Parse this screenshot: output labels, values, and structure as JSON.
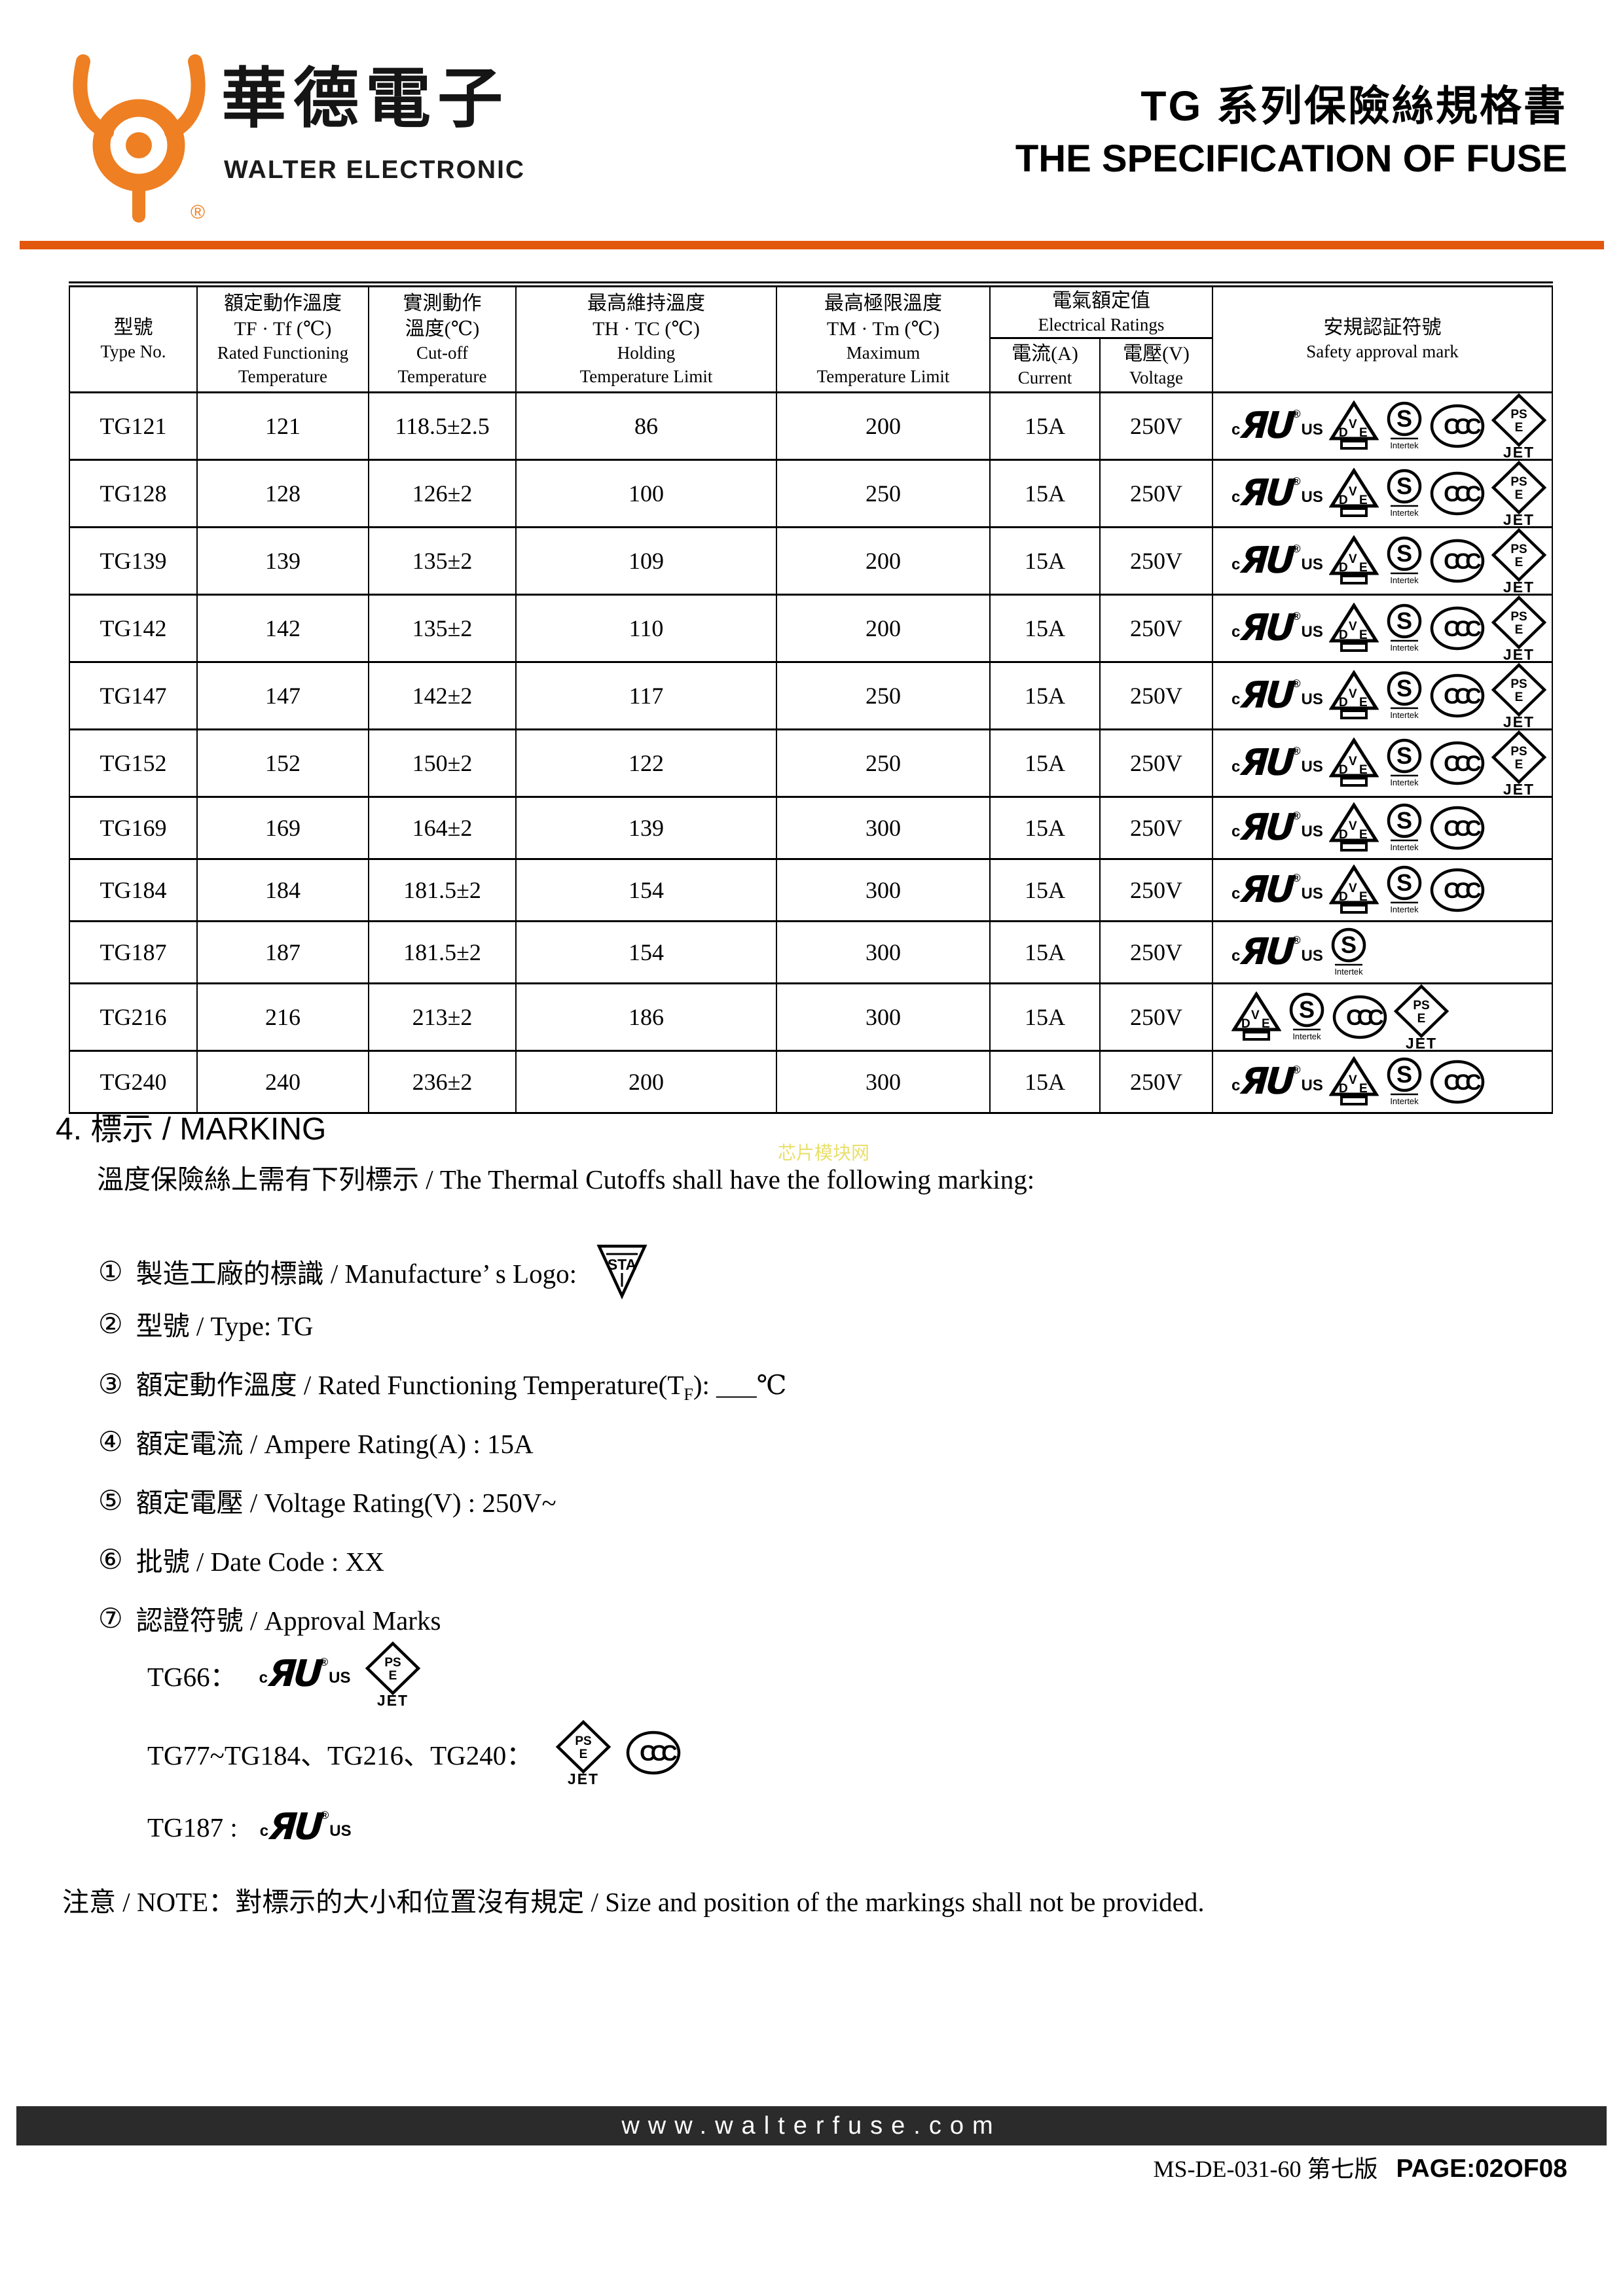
{
  "brand": {
    "name_cn": "華德電子",
    "name_en": "WALTER ELECTRONIC",
    "registered": "®"
  },
  "title": {
    "line1": "TG 系列保險絲規格書",
    "line2": "THE SPECIFICATION OF FUSE"
  },
  "colors": {
    "accent_orange": "#E2570E",
    "logo_orange": "#EE7F22",
    "footer_bar": "#2B2B2B",
    "watermark_yellow": "#E6DA52"
  },
  "table": {
    "col_headers": {
      "type_cn": "型號",
      "type_en": "Type No.",
      "rated_cn": "額定動作溫度",
      "rated_sym": "TF · Tf (℃)",
      "rated_en1": "Rated Functioning",
      "rated_en2": "Temperature",
      "cutoff_cn1": "實測動作",
      "cutoff_cn2": "溫度(℃)",
      "cutoff_en1": "Cut-off",
      "cutoff_en2": "Temperature",
      "holding_cn": "最高維持溫度",
      "holding_sym": "TH · TC (℃)",
      "holding_en1": "Holding",
      "holding_en2": "Temperature Limit",
      "max_cn": "最高極限溫度",
      "max_sym": "TM · Tm (℃)",
      "max_en1": "Maximum",
      "max_en2": "Temperature Limit",
      "elec_cn": "電氣額定值",
      "elec_en": "Electrical Ratings",
      "current_cn": "電流(A)",
      "current_en": "Current",
      "voltage_cn": "電壓(V)",
      "voltage_en": "Voltage",
      "safety_cn": "安規認証符號",
      "safety_en": "Safety approval mark"
    },
    "rows": [
      {
        "type": "TG121",
        "rated": "121",
        "cutoff": "118.5±2.5",
        "holding": "86",
        "max": "200",
        "current": "15A",
        "voltage": "250V",
        "marks": [
          "cULus",
          "VDE",
          "S",
          "CCC",
          "PSE-JET"
        ]
      },
      {
        "type": "TG128",
        "rated": "128",
        "cutoff": "126±2",
        "holding": "100",
        "max": "250",
        "current": "15A",
        "voltage": "250V",
        "marks": [
          "cULus",
          "VDE",
          "S",
          "CCC",
          "PSE-JET"
        ]
      },
      {
        "type": "TG139",
        "rated": "139",
        "cutoff": "135±2",
        "holding": "109",
        "max": "200",
        "current": "15A",
        "voltage": "250V",
        "marks": [
          "cULus",
          "VDE",
          "S",
          "CCC",
          "PSE-JET"
        ]
      },
      {
        "type": "TG142",
        "rated": "142",
        "cutoff": "135±2",
        "holding": "110",
        "max": "200",
        "current": "15A",
        "voltage": "250V",
        "marks": [
          "cULus",
          "VDE",
          "S",
          "CCC",
          "PSE-JET"
        ]
      },
      {
        "type": "TG147",
        "rated": "147",
        "cutoff": "142±2",
        "holding": "117",
        "max": "250",
        "current": "15A",
        "voltage": "250V",
        "marks": [
          "cULus",
          "VDE",
          "S",
          "CCC",
          "PSE-JET"
        ]
      },
      {
        "type": "TG152",
        "rated": "152",
        "cutoff": "150±2",
        "holding": "122",
        "max": "250",
        "current": "15A",
        "voltage": "250V",
        "marks": [
          "cULus",
          "VDE",
          "S",
          "CCC",
          "PSE-JET"
        ]
      },
      {
        "type": "TG169",
        "rated": "169",
        "cutoff": "164±2",
        "holding": "139",
        "max": "300",
        "current": "15A",
        "voltage": "250V",
        "marks": [
          "cULus",
          "VDE",
          "S",
          "CCC"
        ]
      },
      {
        "type": "TG184",
        "rated": "184",
        "cutoff": "181.5±2",
        "holding": "154",
        "max": "300",
        "current": "15A",
        "voltage": "250V",
        "marks": [
          "cULus",
          "VDE",
          "S",
          "CCC"
        ]
      },
      {
        "type": "TG187",
        "rated": "187",
        "cutoff": "181.5±2",
        "holding": "154",
        "max": "300",
        "current": "15A",
        "voltage": "250V",
        "marks": [
          "cULus",
          "S"
        ]
      },
      {
        "type": "TG216",
        "rated": "216",
        "cutoff": "213±2",
        "holding": "186",
        "max": "300",
        "current": "15A",
        "voltage": "250V",
        "marks": [
          "VDE",
          "S",
          "CCC",
          "PSE-JET"
        ]
      },
      {
        "type": "TG240",
        "rated": "240",
        "cutoff": "236±2",
        "holding": "200",
        "max": "300",
        "current": "15A",
        "voltage": "250V",
        "marks": [
          "cULus",
          "VDE",
          "S",
          "CCC"
        ]
      }
    ]
  },
  "marking": {
    "heading": "4. 標示 / MARKING",
    "intro": "溫度保險絲上需有下列標示 / The Thermal Cutoffs shall have the following marking:",
    "watermark": "芯片模块网",
    "items": [
      {
        "num": "①",
        "text": "製造工廠的標識 / Manufacture’ s Logo:",
        "icon": "STA"
      },
      {
        "num": "②",
        "text": "型號 / Type: TG"
      },
      {
        "num": "③",
        "pre": "額定動作溫度 / Rated Functioning Temperature(T",
        "sub": "F",
        "post": "): ___℃"
      },
      {
        "num": "④",
        "text": "額定電流 / Ampere Rating(A) : 15A"
      },
      {
        "num": "⑤",
        "text": "額定電壓 / Voltage Rating(V) : 250V~"
      },
      {
        "num": "⑥",
        "text": "批號 / Date Code : XX"
      },
      {
        "num": "⑦",
        "text": "認證符號 / Approval Marks"
      }
    ],
    "approval_lines": [
      {
        "label": "TG66：",
        "icons": [
          "cULus",
          "PSE-JET"
        ]
      },
      {
        "label": "TG77~TG184、TG216、TG240：",
        "icons": [
          "PSE-JET",
          "CCC"
        ]
      },
      {
        "label": "TG187 :",
        "icons": [
          "cULus"
        ]
      }
    ],
    "note": "注意 / NOTE：對標示的大小和位置沒有規定 / Size and position of the markings shall not be provided."
  },
  "icon_labels": {
    "ul_c": "c",
    "ul_main": "ЯU",
    "ul_reg": "®",
    "ul_us": "US",
    "vde_d": "D",
    "vde_v": "V",
    "vde_e": "E",
    "s_letter": "S",
    "s_sub": "Intertek",
    "ccc": "CCC",
    "pse_top": "PS",
    "pse_bottom": "E",
    "jet": "JET",
    "sta": "STA"
  },
  "footer": {
    "website": "www.walterfuse.com",
    "doc_no": "MS-DE-031-60 第七版",
    "page": "PAGE:02OF08"
  }
}
